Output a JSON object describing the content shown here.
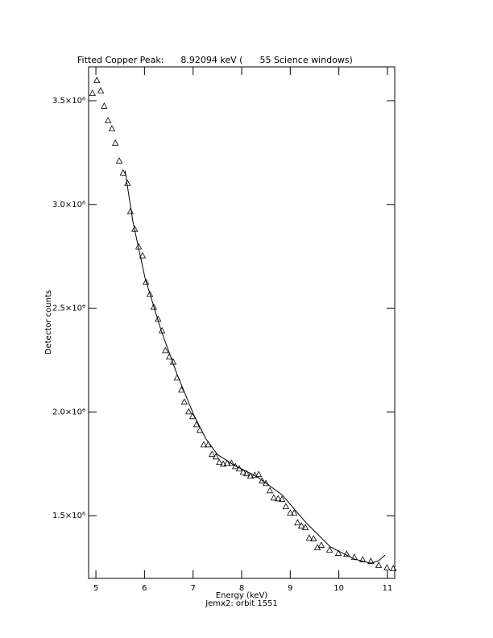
{
  "chart_data": {
    "type": "scatter",
    "title": "Fitted Copper Peak:      8.92094 keV (      55 Science windows)",
    "xlabel": "Energy (keV)",
    "subtitle": "Jemx2: orbit 1551",
    "ylabel": "Detector counts",
    "xlim": [
      4.85,
      11.15
    ],
    "ylim": [
      1198000,
      3663000
    ],
    "xticks": [
      5,
      6,
      7,
      8,
      9,
      10,
      11
    ],
    "yticks": [
      {
        "value": 1500000,
        "label": "1.5×10⁶"
      },
      {
        "value": 2000000,
        "label": "2.0×10⁶"
      },
      {
        "value": 2500000,
        "label": "2.5×10⁶"
      },
      {
        "value": 3000000,
        "label": "3.0×10⁶"
      },
      {
        "value": 3500000,
        "label": "3.5×10⁶"
      }
    ],
    "series": [
      {
        "marker": "triangle",
        "color": "#000000",
        "x": [
          4.93,
          5.02,
          5.1,
          5.17,
          5.25,
          5.33,
          5.4,
          5.48,
          5.56,
          5.65,
          5.71,
          5.8,
          5.88,
          5.96,
          6.03,
          6.11,
          6.19,
          6.28,
          6.36,
          6.43,
          6.51,
          6.59,
          6.67,
          6.76,
          6.82,
          6.91,
          6.99,
          7.07,
          7.14,
          7.22,
          7.31,
          7.39,
          7.47,
          7.54,
          7.62,
          7.7,
          7.79,
          7.87,
          7.95,
          8.03,
          8.1,
          8.18,
          8.27,
          8.35,
          8.42,
          8.5,
          8.58,
          8.66,
          8.75,
          8.83,
          8.91,
          9.0,
          9.08,
          9.15,
          9.23,
          9.31,
          9.39,
          9.48,
          9.56,
          9.64,
          9.81,
          9.99,
          10.16,
          10.32,
          10.49,
          10.66,
          10.82,
          10.99,
          11.12
        ],
        "values": [
          3535000,
          3597000,
          3547000,
          3473000,
          3403000,
          3364000,
          3295000,
          3209000,
          3151000,
          3101000,
          2965000,
          2880000,
          2795000,
          2752000,
          2624000,
          2566000,
          2504000,
          2446000,
          2391000,
          2295000,
          2264000,
          2240000,
          2163000,
          2105000,
          2047000,
          2000000,
          1977000,
          1938000,
          1911000,
          1841000,
          1841000,
          1795000,
          1783000,
          1756000,
          1748000,
          1752000,
          1752000,
          1736000,
          1725000,
          1709000,
          1702000,
          1690000,
          1694000,
          1698000,
          1667000,
          1655000,
          1620000,
          1585000,
          1581000,
          1578000,
          1543000,
          1512000,
          1512000,
          1465000,
          1450000,
          1442000,
          1392000,
          1388000,
          1345000,
          1357000,
          1334000,
          1318000,
          1314000,
          1298000,
          1287000,
          1279000,
          1260000,
          1248000,
          1244000
        ]
      },
      {
        "marker": "line",
        "color": "#000000",
        "x": [
          5.6,
          5.76,
          6.01,
          6.34,
          6.67,
          7.01,
          7.26,
          7.5,
          7.84,
          8.33,
          8.83,
          9.33,
          9.83,
          10.32,
          10.66,
          10.82,
          10.95
        ],
        "values": [
          3163000,
          2919000,
          2647000,
          2395000,
          2182000,
          1988000,
          1872000,
          1795000,
          1744000,
          1686000,
          1601000,
          1465000,
          1349000,
          1291000,
          1271000,
          1283000,
          1310000
        ]
      }
    ]
  }
}
